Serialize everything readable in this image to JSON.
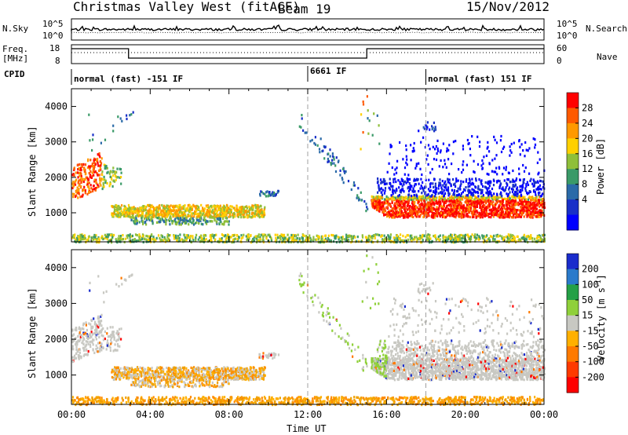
{
  "header": {
    "station": "Christmas Valley West (fitACF)",
    "beam": "Beam 19",
    "date": "15/Nov/2012"
  },
  "left_labels": {
    "nsky": "N.Sky",
    "freq": "Freq.",
    "freq_unit": "[MHz]",
    "cpid": "CPID"
  },
  "right_labels": {
    "nsearch": "N.Search",
    "nave": "Nave"
  },
  "noise_panel": {
    "left_ticks": [
      "10^5",
      "10^0"
    ],
    "right_ticks": [
      "10^5",
      "10^0"
    ]
  },
  "freq_panel": {
    "left_ticks": [
      "18",
      "8"
    ],
    "right_ticks": [
      "60",
      "0"
    ]
  },
  "cpid_panel": {
    "segments": [
      {
        "label": "normal (fast) -151 IF",
        "start_hour": 0
      },
      {
        "label": "6661 IF",
        "start_hour": 12
      },
      {
        "label": "normal (fast) 151 IF",
        "start_hour": 18
      }
    ]
  },
  "chart_data": [
    {
      "type": "heatmap",
      "name": "power",
      "ylabel": "Slant Range [km]",
      "yticks": [
        1000,
        2000,
        3000,
        4000
      ],
      "ylim": [
        180,
        4500
      ],
      "xlim_hours": [
        0,
        24
      ],
      "colorbar_label": "Power [dB]",
      "colorbar_ticks": [
        "28",
        "24",
        "20",
        "16",
        "12",
        "8",
        "4"
      ],
      "colorbar_colors": [
        "#ff0000",
        "#ff5a00",
        "#ff9900",
        "#ffd000",
        "#8fbf3a",
        "#3a9a68",
        "#2a6aa8",
        "#1830c8",
        "#0000ff"
      ]
    },
    {
      "type": "heatmap",
      "name": "velocity",
      "ylabel": "Slant Range [km]",
      "xlabel": "Time UT",
      "yticks": [
        1000,
        2000,
        3000,
        4000
      ],
      "ylim": [
        180,
        4500
      ],
      "xlim_hours": [
        0,
        24
      ],
      "xticks": [
        "00:00",
        "04:00",
        "08:00",
        "12:00",
        "16:00",
        "20:00",
        "00:00"
      ],
      "colorbar_label": "Velocity [m s",
      "colorbar_label_sup": "-1",
      "colorbar_label_end": "]",
      "colorbar_ticks": [
        "200",
        "100",
        "50",
        "15",
        "-15",
        "-50",
        "-100",
        "-200"
      ],
      "colorbar_colors": [
        "#1a2ccc",
        "#2a7acb",
        "#24a046",
        "#8fd03a",
        "#c8c8c2",
        "#ffb000",
        "#ff7a00",
        "#ff3a00",
        "#ff0000"
      ]
    }
  ],
  "colors": {
    "grid_dash": "#a0a0a0",
    "ground_grey": "#c8c8c2",
    "ground_orange": "#f0a000"
  }
}
